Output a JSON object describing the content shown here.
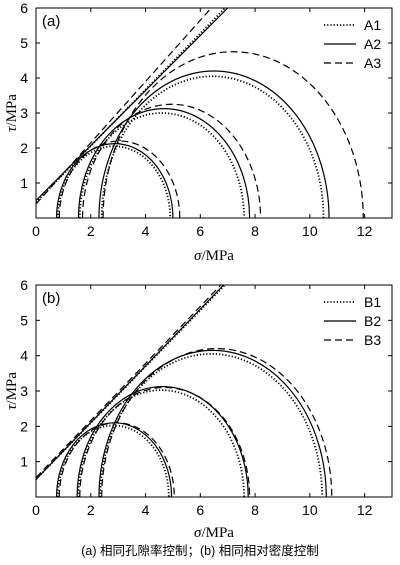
{
  "caption": "(a) 相同孔隙率控制；(b) 相同相对密度控制",
  "chart_data": [
    {
      "type": "line",
      "panel_label": "(a)",
      "xlabel_symbol": "σ",
      "xlabel_unit": "/MPa",
      "ylabel_symbol": "τ",
      "ylabel_unit": "/MPa",
      "xlim": [
        0,
        13
      ],
      "ylim": [
        0,
        6
      ],
      "xticks": [
        0,
        2,
        4,
        6,
        8,
        10,
        12
      ],
      "yticks": [
        1,
        2,
        3,
        4,
        5,
        6
      ],
      "grid": false,
      "legend_position": "top-right",
      "series": [
        {
          "name": "A1",
          "style": "dotted",
          "circles": [
            [
              0.8,
              4.9
            ],
            [
              1.6,
              7.6
            ],
            [
              2.4,
              10.5
            ]
          ],
          "envelope": {
            "x": [
              0,
              6.9
            ],
            "y": [
              0.45,
              6.0
            ]
          }
        },
        {
          "name": "A2",
          "style": "solid",
          "circles": [
            [
              0.75,
              5.0
            ],
            [
              1.55,
              7.8
            ],
            [
              2.3,
              10.7
            ]
          ],
          "envelope": {
            "x": [
              0,
              7.0
            ],
            "y": [
              0.5,
              6.0
            ]
          }
        },
        {
          "name": "A3",
          "style": "dashed",
          "circles": [
            [
              0.85,
              5.25
            ],
            [
              1.7,
              8.2
            ],
            [
              2.45,
              11.95
            ]
          ],
          "envelope": {
            "x": [
              0,
              6.4
            ],
            "y": [
              0.4,
              6.0
            ]
          }
        }
      ]
    },
    {
      "type": "line",
      "panel_label": "(b)",
      "xlabel_symbol": "σ",
      "xlabel_unit": "/MPa",
      "ylabel_symbol": "τ",
      "ylabel_unit": "/MPa",
      "xlim": [
        0,
        13
      ],
      "ylim": [
        0,
        6
      ],
      "xticks": [
        0,
        2,
        4,
        6,
        8,
        10,
        12
      ],
      "yticks": [
        1,
        2,
        3,
        4,
        5,
        6
      ],
      "grid": false,
      "legend_position": "top-right",
      "series": [
        {
          "name": "B1",
          "style": "dotted",
          "circles": [
            [
              0.8,
              4.85
            ],
            [
              1.55,
              7.6
            ],
            [
              2.35,
              10.45
            ]
          ],
          "envelope": {
            "x": [
              0,
              6.9
            ],
            "y": [
              0.5,
              6.0
            ]
          }
        },
        {
          "name": "B2",
          "style": "solid",
          "circles": [
            [
              0.75,
              4.95
            ],
            [
              1.5,
              7.75
            ],
            [
              2.3,
              10.6
            ]
          ],
          "envelope": {
            "x": [
              0,
              6.85
            ],
            "y": [
              0.5,
              6.0
            ]
          }
        },
        {
          "name": "B3",
          "style": "dashed",
          "circles": [
            [
              0.85,
              5.05
            ],
            [
              1.6,
              7.8
            ],
            [
              2.4,
              10.8
            ]
          ],
          "envelope": {
            "x": [
              0,
              6.75
            ],
            "y": [
              0.55,
              6.0
            ]
          }
        }
      ]
    }
  ]
}
